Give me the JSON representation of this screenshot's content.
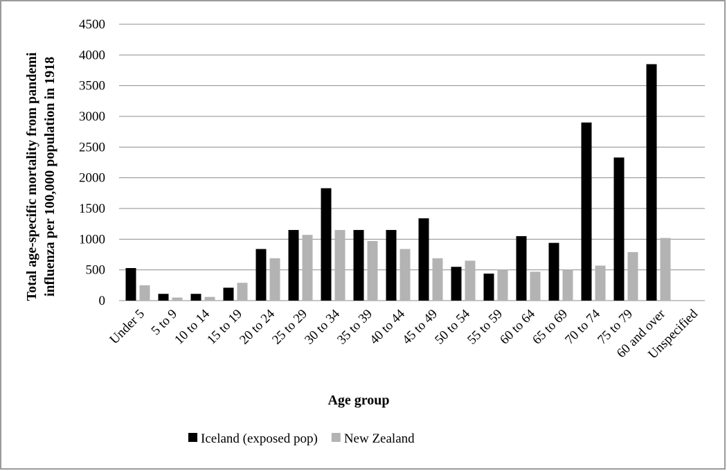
{
  "chart_data": {
    "type": "bar",
    "ylabel": [
      "Total age-specific mortality from pandemi",
      "influenza per 100,000 population in 1918"
    ],
    "xlabel": "Age group",
    "categories": [
      "Under 5",
      "5 to 9",
      "10 to 14",
      "15 to 19",
      "20 to 24",
      "25 to 29",
      "30 to 34",
      "35 to 39",
      "40 to 44",
      "45 to 49",
      "50 to 54",
      "55 to 59",
      "60 to 64",
      "65 to 69",
      "70 to 74",
      "75 to 79",
      "60 and over",
      "Unspecified"
    ],
    "series": [
      {
        "name": "Iceland (exposed pop)",
        "color": "#000000",
        "values": [
          530,
          110,
          110,
          210,
          840,
          1150,
          1830,
          1150,
          1150,
          1340,
          550,
          440,
          1050,
          940,
          2900,
          2330,
          3850,
          null
        ]
      },
      {
        "name": "New Zealand",
        "color": "#b3b3b3",
        "values": [
          250,
          50,
          60,
          290,
          690,
          1070,
          1150,
          970,
          840,
          690,
          650,
          500,
          470,
          500,
          570,
          790,
          1020,
          null
        ]
      }
    ],
    "ylim": [
      0,
      4500
    ],
    "yticks": [
      0,
      500,
      1000,
      1500,
      2000,
      2500,
      3000,
      3500,
      4000,
      4500
    ],
    "grid": true,
    "legend": "bottom"
  }
}
